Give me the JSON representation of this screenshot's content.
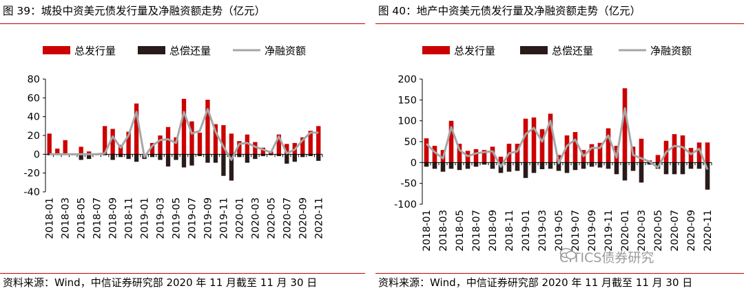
{
  "colors": {
    "issuance": "#cc0000",
    "repayment": "#2a1a1a",
    "net": "#a6a6a6",
    "rule": "#c00000"
  },
  "watermark": {
    "text": "CITICS债券研究"
  },
  "chart_data": [
    {
      "type": "bar",
      "title": "图 39：城投中资美元债发行量及净融资额走势（亿元）",
      "source": "资料来源：Wind，中信证券研究部 2020 年 11 月截至 11 月 30 日",
      "legend": [
        "总发行量",
        "总偿还量",
        "净融资额"
      ],
      "ylim": [
        -40,
        80
      ],
      "yticks": [
        "80",
        "60",
        "40",
        "20",
        "0",
        "-20",
        "-40"
      ],
      "tick_values": [
        80,
        60,
        40,
        20,
        0,
        -20,
        -40
      ],
      "categories": [
        "2018-01",
        "2018-02",
        "2018-03",
        "2018-04",
        "2018-05",
        "2018-06",
        "2018-07",
        "2018-08",
        "2018-09",
        "2018-10",
        "2018-11",
        "2018-12",
        "2019-01",
        "2019-02",
        "2019-03",
        "2019-04",
        "2019-05",
        "2019-06",
        "2019-07",
        "2019-08",
        "2019-09",
        "2019-10",
        "2019-11",
        "2019-12",
        "2020-01",
        "2020-02",
        "2020-03",
        "2020-04",
        "2020-05",
        "2020-06",
        "2020-07",
        "2020-08",
        "2020-09",
        "2020-10",
        "2020-11"
      ],
      "xticklabels": [
        "2018-01",
        "2018-03",
        "2018-05",
        "2018-07",
        "2018-09",
        "2018-11",
        "2019-01",
        "2019-03",
        "2019-05",
        "2019-07",
        "2019-09",
        "2019-11",
        "2020-01",
        "2020-03",
        "2020-05",
        "2020-07",
        "2020-09",
        "2020-11"
      ],
      "series": [
        {
          "name": "总发行量",
          "type": "bar",
          "values": [
            22,
            6,
            15,
            0,
            8,
            3,
            0,
            30,
            27,
            10,
            24,
            54,
            0,
            12,
            20,
            29,
            18,
            59,
            35,
            23,
            58,
            32,
            31,
            22,
            14,
            21,
            13,
            7,
            3,
            21,
            11,
            12,
            18,
            25,
            30
          ]
        },
        {
          "name": "总偿还量",
          "type": "bar",
          "values": [
            -1,
            -1,
            -1,
            -1,
            -6,
            -5,
            -1,
            -1,
            -6,
            -3,
            -5,
            -8,
            -5,
            -3,
            -6,
            -13,
            -6,
            -14,
            -12,
            -2,
            -9,
            -9,
            -23,
            -28,
            -3,
            -9,
            -5,
            -2,
            -1,
            -2,
            -10,
            -8,
            -3,
            -2,
            -7
          ]
        },
        {
          "name": "净融资额",
          "type": "line",
          "values": [
            0,
            0,
            0,
            0,
            0,
            0,
            0,
            1,
            19,
            7,
            20,
            45,
            -3,
            9,
            15,
            16,
            12,
            45,
            22,
            25,
            48,
            24,
            8,
            -6,
            11,
            12,
            8,
            5,
            2,
            19,
            1,
            5,
            15,
            23,
            23
          ]
        }
      ]
    },
    {
      "type": "bar",
      "title": "图 40：地产中资美元债发行量及净融资额走势（亿元）",
      "source": "资料来源：Wind，中信证券研究部 2020 年 11 月截至 11 月 30 日",
      "legend": [
        "总发行量",
        "总偿还量",
        "净融资额"
      ],
      "ylim": [
        -100,
        200
      ],
      "yticks": [
        "200",
        "150",
        "100",
        "50",
        "0",
        "-50",
        "-100"
      ],
      "tick_values": [
        200,
        150,
        100,
        50,
        0,
        -50,
        -100
      ],
      "categories": [
        "2018-01",
        "2018-02",
        "2018-03",
        "2018-04",
        "2018-05",
        "2018-06",
        "2018-07",
        "2018-08",
        "2018-09",
        "2018-10",
        "2018-11",
        "2018-12",
        "2019-01",
        "2019-02",
        "2019-03",
        "2019-04",
        "2019-05",
        "2019-06",
        "2019-07",
        "2019-08",
        "2019-09",
        "2019-10",
        "2019-11",
        "2019-12",
        "2020-01",
        "2020-02",
        "2020-03",
        "2020-04",
        "2020-05",
        "2020-06",
        "2020-07",
        "2020-08",
        "2020-09",
        "2020-10",
        "2020-11"
      ],
      "xticklabels": [
        "2018-01",
        "2018-03",
        "2018-05",
        "2018-07",
        "2018-09",
        "2018-11",
        "2019-01",
        "2019-03",
        "2019-05",
        "2019-07",
        "2019-09",
        "2019-11",
        "2020-01",
        "2020-03",
        "2020-05",
        "2020-07",
        "2020-09",
        "2020-11"
      ],
      "series": [
        {
          "name": "总发行量",
          "type": "bar",
          "values": [
            58,
            40,
            30,
            100,
            45,
            28,
            32,
            30,
            38,
            14,
            45,
            45,
            105,
            108,
            80,
            117,
            18,
            65,
            73,
            30,
            44,
            47,
            82,
            40,
            178,
            38,
            57,
            5,
            18,
            52,
            68,
            65,
            35,
            48,
            48
          ]
        },
        {
          "name": "总偿还量",
          "type": "bar",
          "values": [
            -10,
            -15,
            -22,
            -15,
            -18,
            -15,
            -10,
            -5,
            -15,
            -25,
            -22,
            -20,
            -37,
            -25,
            -16,
            -15,
            -20,
            -25,
            -18,
            -15,
            -10,
            -12,
            -15,
            -28,
            -43,
            -20,
            -48,
            -5,
            -15,
            -28,
            -28,
            -28,
            -15,
            -15,
            -65
          ]
        },
        {
          "name": "净融资额",
          "type": "line",
          "values": [
            45,
            25,
            10,
            85,
            30,
            15,
            22,
            25,
            27,
            -10,
            22,
            27,
            68,
            83,
            50,
            100,
            -2,
            40,
            55,
            15,
            35,
            35,
            65,
            12,
            130,
            18,
            10,
            2,
            -12,
            25,
            40,
            37,
            20,
            33,
            -17
          ]
        }
      ]
    }
  ]
}
